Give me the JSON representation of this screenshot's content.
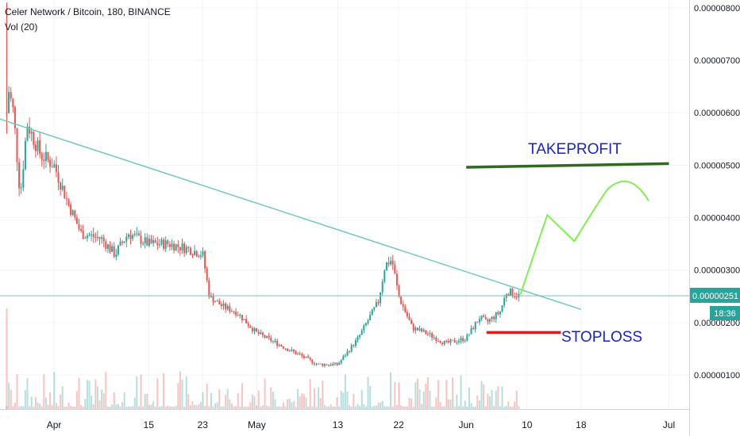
{
  "legend": {
    "symbol_line": "Celer Network / Bitcoin, 180, BINANCE",
    "volume_line": "Vol (20)"
  },
  "price_tag": {
    "value": "0.00000251",
    "countdown": "18:36",
    "color": "#26a69a"
  },
  "chart_data": {
    "type": "candlestick",
    "ylim": [
      3.5e-07,
      8.15e-06
    ],
    "y_ticks": [
      {
        "value": 1e-06,
        "label": "0.00000100"
      },
      {
        "value": 2e-06,
        "label": "0.00000200"
      },
      {
        "value": 3e-06,
        "label": "0.00000300"
      },
      {
        "value": 4e-06,
        "label": "0.00000400"
      },
      {
        "value": 5e-06,
        "label": "0.00000500"
      },
      {
        "value": 6e-06,
        "label": "0.00000600"
      },
      {
        "value": 7e-06,
        "label": "0.00000700"
      },
      {
        "value": 8e-06,
        "label": "0.00000800"
      }
    ],
    "x_ticks": [
      {
        "date": "2019-04-01",
        "label": "Apr"
      },
      {
        "date": "2019-04-15",
        "label": "15"
      },
      {
        "date": "2019-04-23",
        "label": "23"
      },
      {
        "date": "2019-05-01",
        "label": "May"
      },
      {
        "date": "2019-05-13",
        "label": "13"
      },
      {
        "date": "2019-05-22",
        "label": "22"
      },
      {
        "date": "2019-06-01",
        "label": "Jun"
      },
      {
        "date": "2019-06-10",
        "label": "10"
      },
      {
        "date": "2019-06-18",
        "label": "18"
      },
      {
        "date": "2019-07-01",
        "label": "Jul"
      }
    ],
    "xlim": [
      "2019-03-24",
      "2019-07-04"
    ],
    "price_path": [
      [
        "2019-03-25",
        6e-06
      ],
      [
        "2019-03-25",
        8e-06
      ],
      [
        "2019-03-25",
        6.6e-06
      ],
      [
        "2019-03-26",
        6e-06
      ],
      [
        "2019-03-27",
        4.4e-06
      ],
      [
        "2019-03-28",
        5.8e-06
      ],
      [
        "2019-03-29",
        5.5e-06
      ],
      [
        "2019-03-30",
        5.2e-06
      ],
      [
        "2019-04-01",
        5e-06
      ],
      [
        "2019-04-03",
        4.3e-06
      ],
      [
        "2019-04-05",
        3.7e-06
      ],
      [
        "2019-04-08",
        3.6e-06
      ],
      [
        "2019-04-10",
        3.3e-06
      ],
      [
        "2019-04-12",
        3.7e-06
      ],
      [
        "2019-04-15",
        3.5e-06
      ],
      [
        "2019-04-18",
        3.5e-06
      ],
      [
        "2019-04-21",
        3.4e-06
      ],
      [
        "2019-04-23",
        3.3e-06
      ],
      [
        "2019-04-24",
        2.5e-06
      ],
      [
        "2019-04-26",
        2.3e-06
      ],
      [
        "2019-04-28",
        2.2e-06
      ],
      [
        "2019-05-01",
        1.8e-06
      ],
      [
        "2019-05-04",
        1.6e-06
      ],
      [
        "2019-05-07",
        1.4e-06
      ],
      [
        "2019-05-10",
        1.2e-06
      ],
      [
        "2019-05-13",
        1.2e-06
      ],
      [
        "2019-05-16",
        1.7e-06
      ],
      [
        "2019-05-19",
        2.4e-06
      ],
      [
        "2019-05-20",
        3.1e-06
      ],
      [
        "2019-05-21",
        3.2e-06
      ],
      [
        "2019-05-22",
        2.5e-06
      ],
      [
        "2019-05-24",
        1.9e-06
      ],
      [
        "2019-05-26",
        1.8e-06
      ],
      [
        "2019-05-29",
        1.6e-06
      ],
      [
        "2019-06-01",
        1.7e-06
      ],
      [
        "2019-06-03",
        2.1e-06
      ],
      [
        "2019-06-04",
        2e-06
      ],
      [
        "2019-06-06",
        2.2e-06
      ],
      [
        "2019-06-07",
        2.6e-06
      ],
      [
        "2019-06-09",
        2.5e-06
      ]
    ],
    "trendline": {
      "from": [
        "2019-03-24",
        5.88e-06
      ],
      "to": [
        "2019-06-18",
        2.25e-06
      ],
      "color": "#6fc9bb"
    },
    "horizontal_line": {
      "value": 2.51e-06,
      "color": "#6fc9bb"
    },
    "annotations": [
      {
        "text": "TAKEPROFIT",
        "color": "#1a23c9"
      },
      {
        "text": "STOPLOSS",
        "color": "#1a23c9"
      }
    ],
    "takeprofit_line": {
      "from": [
        "2019-06-01",
        4.96e-06
      ],
      "to": [
        "2019-07-01",
        5.03e-06
      ],
      "color": "#2e6b1d"
    },
    "stoploss_line": {
      "from": [
        "2019-06-04",
        1.81e-06
      ],
      "to": [
        "2019-06-15",
        1.81e-06
      ],
      "color": "#e3191b"
    },
    "projection_path": [
      [
        "2019-06-09",
        2.53e-06
      ],
      [
        "2019-06-13",
        4.05e-06
      ],
      [
        "2019-06-17",
        3.55e-06
      ],
      [
        "2019-06-22",
        4.55e-06
      ],
      [
        "2019-06-25",
        4.77e-06
      ],
      [
        "2019-06-28",
        4.32e-06
      ]
    ],
    "projection_color": "#7ff04f",
    "colors": {
      "up": "#26a69a",
      "down": "#ef5350",
      "grid": "#f0f3fa",
      "axis_border": "#d1d4dc"
    },
    "grid": true
  }
}
